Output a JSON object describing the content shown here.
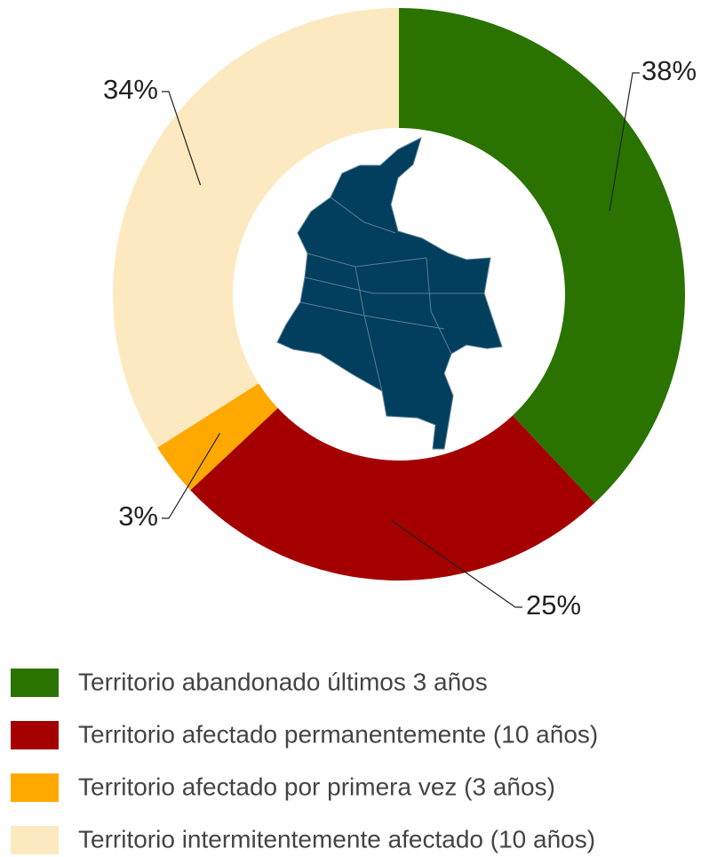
{
  "chart_data": {
    "type": "donut",
    "categories": [
      "Territorio abandonado últimos 3 años",
      "Territorio afectado permanentemente (10 años)",
      "Territorio afectado por primera vez (3 años)",
      "Territorio intermitentemente afectado (10 años)"
    ],
    "values": [
      38,
      25,
      3,
      34
    ],
    "value_labels": [
      "38%",
      "25%",
      "3%",
      "34%"
    ],
    "colors": [
      "#2a7300",
      "#a50000",
      "#ffa800",
      "#fde9c0"
    ]
  }
}
